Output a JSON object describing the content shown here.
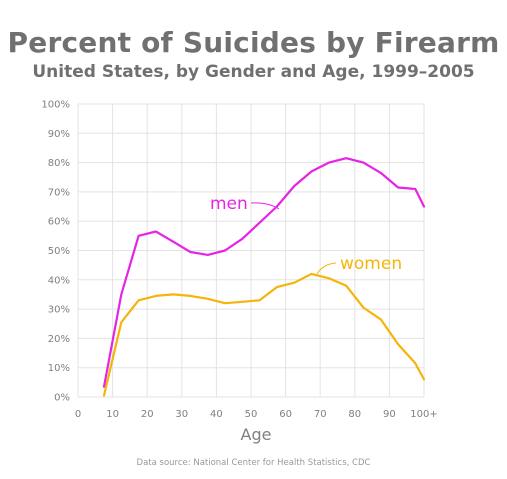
{
  "title": "Percent of Suicides by Firearm",
  "subtitle": "United States, by Gender and Age, 1999–2005",
  "source": "Data source: National Center for Health Statistics, CDC",
  "chart_data": {
    "type": "line",
    "title": "Percent of Suicides by Firearm",
    "subtitle": "United States, by Gender and Age, 1999–2005",
    "xlabel": "Age",
    "ylabel": "",
    "x_ticks": [
      "0",
      "10",
      "20",
      "30",
      "40",
      "50",
      "60",
      "70",
      "80",
      "90",
      "100+"
    ],
    "x_tick_values": [
      0,
      10,
      20,
      30,
      40,
      50,
      60,
      70,
      80,
      90,
      100
    ],
    "y_ticks": [
      "0%",
      "10%",
      "20%",
      "30%",
      "40%",
      "50%",
      "60%",
      "70%",
      "80%",
      "90%",
      "100%"
    ],
    "xlim": [
      0,
      100
    ],
    "ylim": [
      0,
      100
    ],
    "grid": true,
    "series": [
      {
        "name": "men",
        "color": "#e524e5",
        "x": [
          7.5,
          12.5,
          17.5,
          22.5,
          27.5,
          32.5,
          37.5,
          42.5,
          47.5,
          52.5,
          57.5,
          62.5,
          67.5,
          72.5,
          77.5,
          82.5,
          87.5,
          92.5,
          97.5,
          100
        ],
        "y": [
          3.5,
          35,
          55,
          56.5,
          53,
          49.5,
          48.5,
          50,
          54,
          59.5,
          65,
          72,
          77,
          80,
          81.5,
          80,
          76.5,
          71.5,
          71,
          65
        ]
      },
      {
        "name": "women",
        "color": "#f5b40a",
        "x": [
          7.5,
          12.5,
          17.5,
          22.5,
          27.5,
          32.5,
          37.5,
          42.5,
          47.5,
          52.5,
          57.5,
          62.5,
          67.5,
          72.5,
          77.5,
          82.5,
          87.5,
          92.5,
          97.5,
          100
        ],
        "y": [
          0.5,
          25.5,
          33,
          34.5,
          35,
          34.5,
          33.5,
          32,
          32.5,
          33,
          37.5,
          39,
          42,
          40.5,
          38,
          30.5,
          26.5,
          18,
          11.5,
          6
        ]
      }
    ],
    "annotations": [
      "men",
      "women"
    ]
  }
}
